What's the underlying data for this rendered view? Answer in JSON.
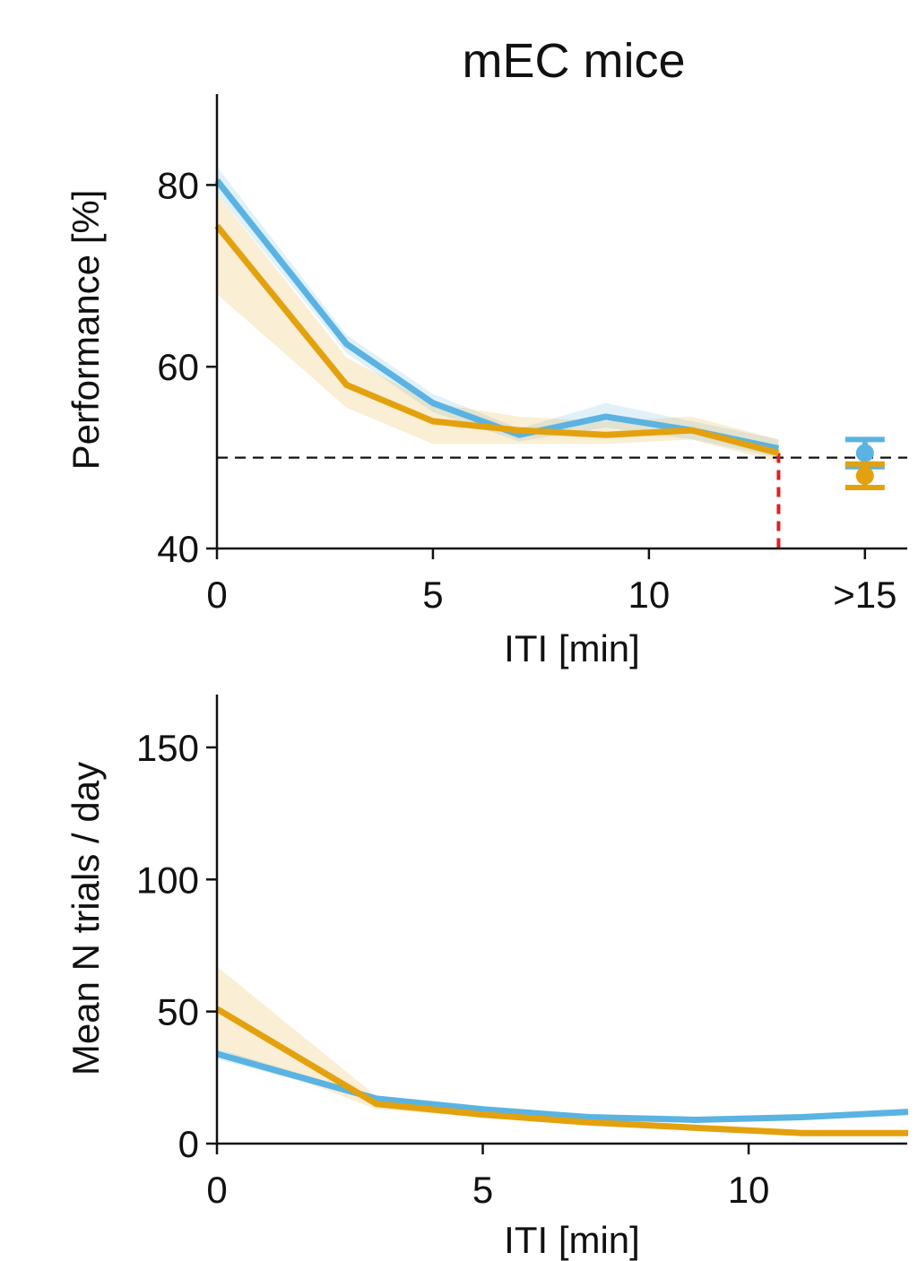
{
  "colors": {
    "blue": "#5AB3E2",
    "orange": "#E3A10E",
    "red": "#E02020",
    "axis": "#111111"
  },
  "chart_data": [
    {
      "type": "line",
      "title": "mEC mice",
      "xlabel": "ITI [min]",
      "ylabel": "Performance [%]",
      "xlim": [
        0,
        16
      ],
      "ylim": [
        40,
        90
      ],
      "xticks": [
        0,
        5,
        10,
        15
      ],
      "xtick_labels": [
        "0",
        "5",
        "10",
        ">15"
      ],
      "yticks": [
        40,
        60,
        80
      ],
      "ytick_labels": [
        "40",
        "60",
        "80"
      ],
      "reference_hline": 50,
      "cutoff_vline": 13,
      "series": [
        {
          "name": "blue",
          "color": "#5AB3E2",
          "x": [
            0,
            3,
            5,
            7,
            9,
            11,
            13
          ],
          "y": [
            80.5,
            62.5,
            56,
            52.5,
            54.5,
            53,
            51
          ],
          "lower": [
            79,
            61.5,
            55,
            51.8,
            53.3,
            52,
            50
          ],
          "upper": [
            82,
            63.5,
            57,
            53.2,
            56,
            54,
            52
          ],
          "summary_point": {
            "x": 15,
            "y": 50.5,
            "err": 1.5
          }
        },
        {
          "name": "orange",
          "color": "#E3A10E",
          "x": [
            0,
            3,
            5,
            7,
            9,
            11,
            13
          ],
          "y": [
            75.5,
            58,
            54,
            53,
            52.5,
            53,
            50.5
          ],
          "lower": [
            68,
            55.5,
            51.5,
            51.5,
            51.5,
            52,
            49.5
          ],
          "upper": [
            79,
            61,
            56,
            54.5,
            54,
            54.5,
            52
          ],
          "summary_point": {
            "x": 15,
            "y": 48,
            "err": 1.3
          }
        }
      ]
    },
    {
      "type": "line",
      "title": "",
      "xlabel": "ITI [min]",
      "ylabel": "Mean N trials / day",
      "xlim": [
        0,
        13
      ],
      "ylim": [
        0,
        170
      ],
      "xticks": [
        0,
        5,
        10
      ],
      "xtick_labels": [
        "0",
        "5",
        "10"
      ],
      "yticks": [
        0,
        50,
        100,
        150
      ],
      "ytick_labels": [
        "0",
        "50",
        "100",
        "150"
      ],
      "series": [
        {
          "name": "blue",
          "color": "#5AB3E2",
          "x": [
            0,
            3,
            5,
            7,
            9,
            11,
            13
          ],
          "y": [
            34,
            17,
            13,
            10,
            9,
            10,
            12
          ],
          "lower": [
            32,
            16,
            12,
            9,
            8,
            9,
            11
          ],
          "upper": [
            36,
            18,
            14,
            11,
            10,
            11,
            13
          ]
        },
        {
          "name": "orange",
          "color": "#E3A10E",
          "x": [
            0,
            3,
            5,
            7,
            9,
            11,
            13
          ],
          "y": [
            51,
            15,
            11,
            8,
            6,
            4,
            4
          ],
          "lower": [
            36,
            13,
            10,
            7,
            5,
            3,
            3
          ],
          "upper": [
            67,
            18,
            13,
            9,
            7,
            5,
            5
          ]
        }
      ]
    }
  ]
}
